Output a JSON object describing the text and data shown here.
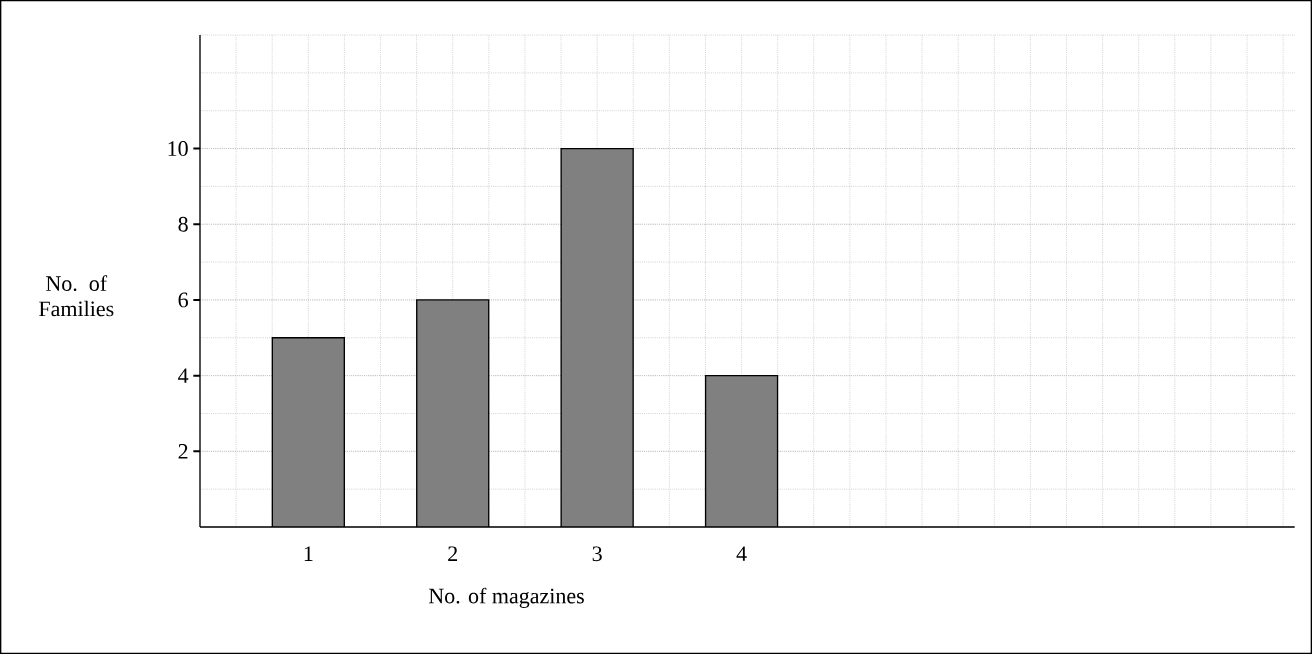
{
  "chart_data": {
    "type": "bar",
    "xlabel": "No. of magazines",
    "ylabel": "No. of Families",
    "categories": [
      "1",
      "2",
      "3",
      "4"
    ],
    "values": [
      5,
      6,
      10,
      4
    ],
    "color": "#808080",
    "ylim": [
      0,
      13
    ],
    "yticks": [
      2,
      4,
      6,
      8,
      10
    ],
    "grid": true
  }
}
